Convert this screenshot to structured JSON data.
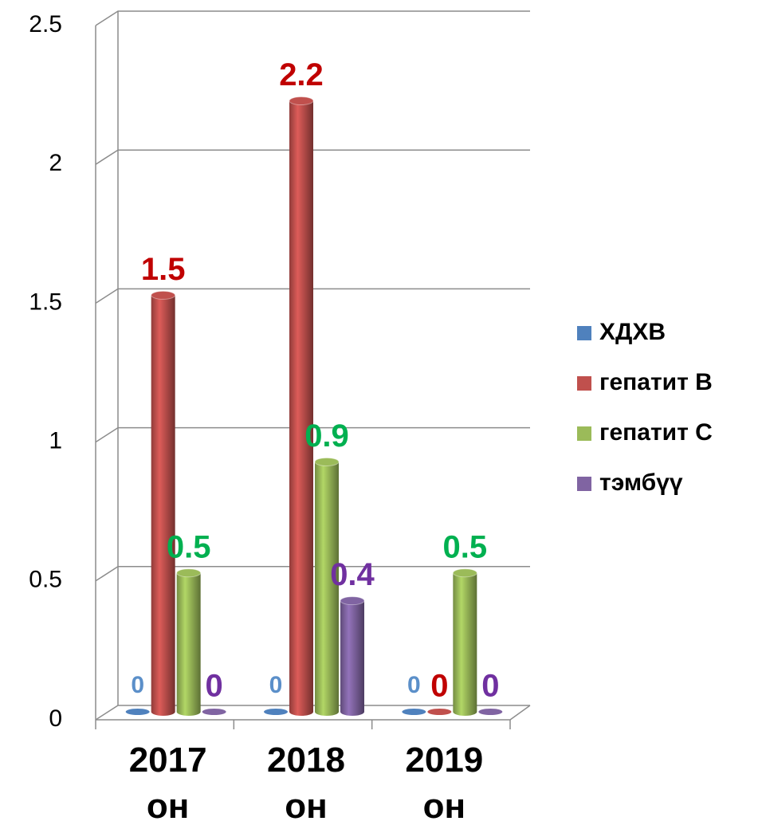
{
  "chart_data": {
    "type": "bar3d",
    "categories": [
      "2017 он",
      "2018 он",
      "2019 он"
    ],
    "series": [
      {
        "name": "ХДХВ",
        "color": "#4f81bd",
        "label_color": "#5b8fc9",
        "values": [
          0,
          0,
          0
        ]
      },
      {
        "name": "гепатит B",
        "color": "#c0504d",
        "label_color": "#c00000",
        "values": [
          1.5,
          2.2,
          0
        ]
      },
      {
        "name": "гепатит C",
        "color": "#9bbb59",
        "label_color": "#00b050",
        "values": [
          0.5,
          0.9,
          0.5
        ]
      },
      {
        "name": "тэмбүү",
        "color": "#8064a2",
        "label_color": "#7030a0",
        "values": [
          0,
          0.4,
          0
        ]
      }
    ],
    "ylim": [
      0,
      2.5
    ],
    "yticks": [
      0,
      0.5,
      1,
      1.5,
      2,
      2.5
    ],
    "grid": true,
    "legend": "right"
  }
}
